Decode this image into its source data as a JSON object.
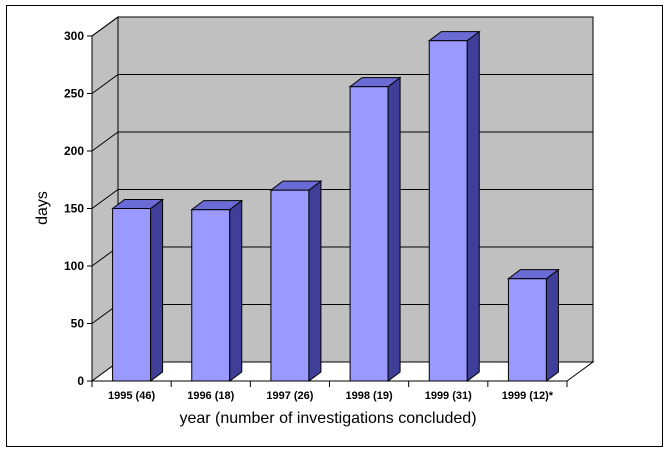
{
  "chart_data": {
    "type": "bar",
    "categories": [
      "1995 (46)",
      "1996 (18)",
      "1997 (26)",
      "1998 (19)",
      "1999 (31)",
      "1999 (12)*"
    ],
    "values": [
      150,
      149,
      166,
      256,
      296,
      89
    ],
    "title": "",
    "xlabel": "year (number of investigations concluded)",
    "ylabel": "days",
    "ylim": [
      0,
      300
    ],
    "yticks": [
      0,
      50,
      100,
      150,
      200,
      250,
      300
    ],
    "grid": true,
    "legend": "none",
    "colors": {
      "bar_front": "#9999ff",
      "bar_side": "#3f3f9a",
      "bar_top": "#6b6bd6",
      "wall": "#c0c0c0",
      "floor": "#ffffff"
    }
  }
}
